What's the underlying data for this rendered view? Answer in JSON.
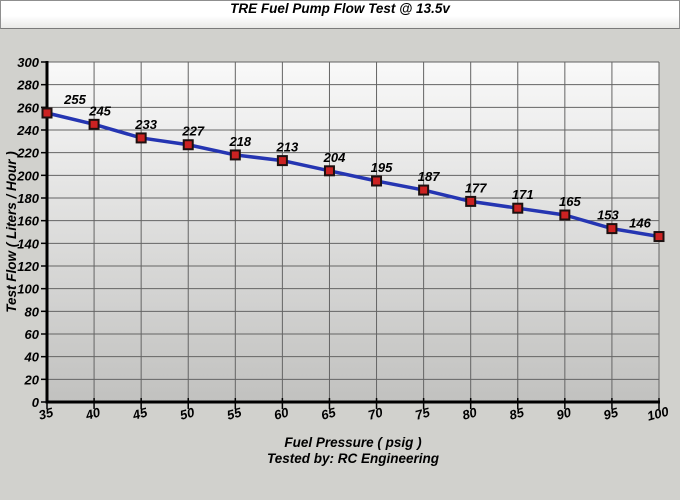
{
  "chart_data": {
    "type": "line",
    "title": "TRE Fuel Pump Flow Test @ 13.5v",
    "x": [
      35,
      40,
      45,
      50,
      55,
      60,
      65,
      70,
      75,
      80,
      85,
      90,
      95,
      100
    ],
    "values": [
      255,
      245,
      233,
      227,
      218,
      213,
      204,
      195,
      187,
      177,
      171,
      165,
      153,
      146
    ],
    "xlabel": "Fuel Pressure ( psig )",
    "ylabel": "Test Flow ( Liters / Hour )",
    "footer": "Tested by: RC Engineering",
    "xlim": [
      35,
      100
    ],
    "ylim": [
      0,
      300
    ],
    "x_tick_step": 5,
    "y_tick_step": 20,
    "grid": true,
    "legend": "none",
    "data_labels": true,
    "style": {
      "line_color": "#2535b2",
      "marker_fill": "#cc2222",
      "marker_stroke": "#1c1010",
      "grid_color": "#646464",
      "axis_color": "#000000",
      "plot_bg_top": "#f9f9f9",
      "plot_bg_bottom": "#c1c1bf",
      "page_bg": "#d1d1cd",
      "title_box_bg_top": "#ffffff",
      "title_box_bg_bottom": "#e9e9e7",
      "text_color": "#000000"
    }
  }
}
